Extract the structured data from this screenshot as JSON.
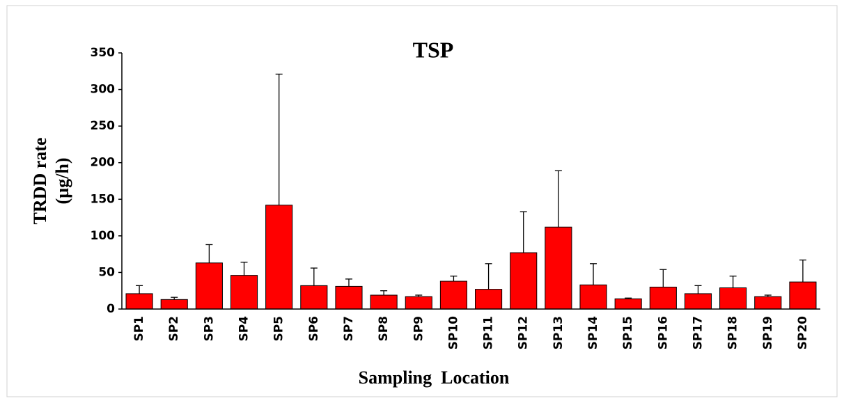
{
  "chart_data": {
    "type": "bar",
    "title": "TSP",
    "x_label": "Sampling  Location",
    "y_label": [
      "TRDD rate",
      "(µg/h)"
    ],
    "categories": [
      "SP1",
      "SP2",
      "SP3",
      "SP4",
      "SP5",
      "SP6",
      "SP7",
      "SP8",
      "SP9",
      "SP10",
      "SP11",
      "SP12",
      "SP13",
      "SP14",
      "SP15",
      "SP16",
      "SP17",
      "SP18",
      "SP19",
      "SP20"
    ],
    "values": [
      21,
      13,
      63,
      46,
      142,
      32,
      31,
      19,
      17,
      38,
      27,
      77,
      112,
      33,
      14,
      30,
      21,
      29,
      17,
      37
    ],
    "errors": [
      11,
      3,
      25,
      18,
      179,
      24,
      10,
      6,
      2,
      7,
      35,
      56,
      77,
      29,
      1,
      24,
      11,
      16,
      2,
      30
    ],
    "color": "#ff0000",
    "ylim": [
      0,
      350
    ],
    "yticks": [
      0,
      50,
      100,
      150,
      200,
      250,
      300,
      350
    ],
    "grid": false
  }
}
